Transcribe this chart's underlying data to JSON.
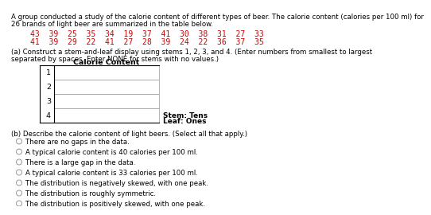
{
  "title_line1": "A group conducted a study of the calorie content of different types of beer. The calorie content (calories per 100 ml) for",
  "title_line2": "26 brands of light beer are summarized in the table below.",
  "data_row1": "43  39  25  35  34  19  37  41  30  38  31  27  33",
  "data_row2": "41  39  29  22  41  27  28  39  24  22  36  37  35",
  "data_color": "#cc0000",
  "part_a_line1": "(a) Construct a stem-and-leaf display using stems 1, 2, 3, and 4. (Enter numbers from smallest to largest",
  "part_a_line2": "separated by spaces. Enter NONE for stems with no values.)",
  "table_title": "Calorie Content",
  "stems": [
    "1",
    "2",
    "3",
    "4"
  ],
  "stem_label_line1": "Stem: Tens",
  "stem_label_line2": "Leaf: Ones",
  "part_b_text": "(b) Describe the calorie content of light beers. (Select all that apply.)",
  "options": [
    "There are no gaps in the data.",
    "A typical calorie content is 40 calories per 100 ml.",
    "There is a large gap in the data.",
    "A typical calorie content is 33 calories per 100 ml.",
    "The distribution is negatively skewed, with one peak.",
    "The distribution is roughly symmetric.",
    "The distribution is positively skewed, with one peak."
  ],
  "bg_color": "#ffffff",
  "box_color": "#ffffff",
  "box_edge_color": "#999999",
  "font_size_title": 6.2,
  "font_size_data": 7.0,
  "font_size_table": 6.8,
  "font_size_options": 6.2,
  "font_size_stem_label": 6.5
}
